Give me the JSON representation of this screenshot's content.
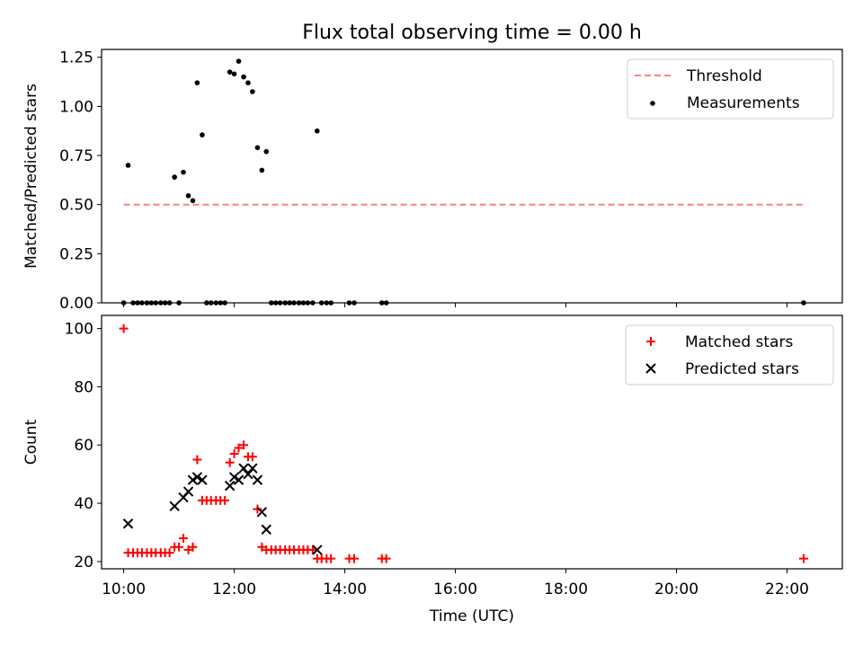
{
  "figure": {
    "title": "Flux total observing time = 0.00 h"
  },
  "chart_data": [
    {
      "type": "scatter",
      "panel": "top",
      "ylabel": "Matched/Predicted stars",
      "xlabel": "",
      "xlim": [
        9.6,
        23.0
      ],
      "ylim": [
        0,
        1.29
      ],
      "yticks": [
        0,
        0.25,
        0.5,
        0.75,
        1.0,
        1.25
      ],
      "ytick_labels": [
        "0.00",
        "0.25",
        "0.50",
        "0.75",
        "1.00",
        "1.25"
      ],
      "xticks": [
        10,
        12,
        14,
        16,
        18,
        20,
        22
      ],
      "xtick_labels_visible": false,
      "grid": false,
      "legend_position": "top-right",
      "legend": [
        {
          "label": "Threshold",
          "style": "dashed-line",
          "color": "#ff7f7f"
        },
        {
          "label": "Measurements",
          "style": "dot",
          "color": "#000000"
        }
      ],
      "series": [
        {
          "name": "Threshold",
          "kind": "line",
          "color": "#ff7f7f",
          "dashed": true,
          "x": [
            10.0,
            22.3
          ],
          "y": [
            0.5,
            0.5
          ]
        },
        {
          "name": "Measurements",
          "kind": "dot",
          "color": "#000000",
          "x": [
            10.0,
            10.08,
            10.17,
            10.25,
            10.33,
            10.42,
            10.5,
            10.58,
            10.67,
            10.75,
            10.83,
            10.92,
            11.0,
            11.08,
            11.17,
            11.25,
            11.33,
            11.42,
            11.5,
            11.58,
            11.67,
            11.75,
            11.83,
            11.92,
            12.0,
            12.08,
            12.17,
            12.25,
            12.33,
            12.42,
            12.5,
            12.58,
            12.67,
            12.75,
            12.83,
            12.92,
            13.0,
            13.08,
            13.17,
            13.25,
            13.33,
            13.42,
            13.5,
            13.58,
            13.67,
            13.75,
            14.08,
            14.17,
            14.67,
            14.75,
            22.3
          ],
          "y": [
            0.0,
            0.7,
            0.0,
            0.0,
            0.0,
            0.0,
            0.0,
            0.0,
            0.0,
            0.0,
            0.0,
            0.64,
            0.0,
            0.665,
            0.545,
            0.52,
            1.12,
            0.855,
            0.0,
            0.0,
            0.0,
            0.0,
            0.0,
            1.175,
            1.165,
            1.23,
            1.15,
            1.12,
            1.075,
            0.79,
            0.675,
            0.77,
            0.0,
            0.0,
            0.0,
            0.0,
            0.0,
            0.0,
            0.0,
            0.0,
            0.0,
            0.0,
            0.875,
            0.0,
            0.0,
            0.0,
            0.0,
            0.0,
            0.0,
            0.0,
            0.0
          ]
        }
      ]
    },
    {
      "type": "scatter",
      "panel": "bottom",
      "ylabel": "Count",
      "xlabel": "Time (UTC)",
      "xlim": [
        9.6,
        23.0
      ],
      "ylim": [
        17.5,
        104.5
      ],
      "yticks": [
        20,
        40,
        60,
        80,
        100
      ],
      "ytick_labels": [
        "20",
        "40",
        "60",
        "80",
        "100"
      ],
      "xticks": [
        10,
        12,
        14,
        16,
        18,
        20,
        22
      ],
      "xtick_labels": [
        "10:00",
        "12:00",
        "14:00",
        "16:00",
        "18:00",
        "20:00",
        "22:00"
      ],
      "grid": false,
      "legend_position": "top-right",
      "legend": [
        {
          "label": "Matched stars",
          "style": "plus",
          "color": "#ff0000"
        },
        {
          "label": "Predicted stars",
          "style": "x",
          "color": "#000000"
        }
      ],
      "series": [
        {
          "name": "Matched stars",
          "kind": "plus",
          "color": "#ff0000",
          "x": [
            10.0,
            10.08,
            10.17,
            10.25,
            10.33,
            10.42,
            10.5,
            10.58,
            10.67,
            10.75,
            10.83,
            10.92,
            11.0,
            11.08,
            11.17,
            11.25,
            11.33,
            11.42,
            11.5,
            11.58,
            11.67,
            11.75,
            11.83,
            11.92,
            12.0,
            12.08,
            12.17,
            12.25,
            12.33,
            12.42,
            12.5,
            12.58,
            12.67,
            12.75,
            12.83,
            12.92,
            13.0,
            13.08,
            13.17,
            13.25,
            13.33,
            13.42,
            13.5,
            13.58,
            13.67,
            13.75,
            14.08,
            14.17,
            14.67,
            14.75,
            22.3
          ],
          "y": [
            100,
            23,
            23,
            23,
            23,
            23,
            23,
            23,
            23,
            23,
            23,
            25,
            25,
            28,
            24,
            25,
            55,
            41,
            41,
            41,
            41,
            41,
            41,
            54,
            57,
            59,
            60,
            56,
            56,
            38,
            25,
            24,
            24,
            24,
            24,
            24,
            24,
            24,
            24,
            24,
            24,
            24,
            21,
            21,
            21,
            21,
            21,
            21,
            21,
            21,
            21
          ]
        },
        {
          "name": "Predicted stars",
          "kind": "x",
          "color": "#000000",
          "x": [
            10.08,
            10.92,
            11.08,
            11.17,
            11.25,
            11.33,
            11.42,
            11.92,
            12.0,
            12.08,
            12.17,
            12.25,
            12.33,
            12.42,
            12.5,
            12.58,
            13.5
          ],
          "y": [
            33,
            39,
            42,
            44,
            48,
            49,
            48,
            46,
            49,
            48,
            52,
            50,
            52,
            48,
            37,
            31,
            24
          ]
        }
      ]
    }
  ]
}
